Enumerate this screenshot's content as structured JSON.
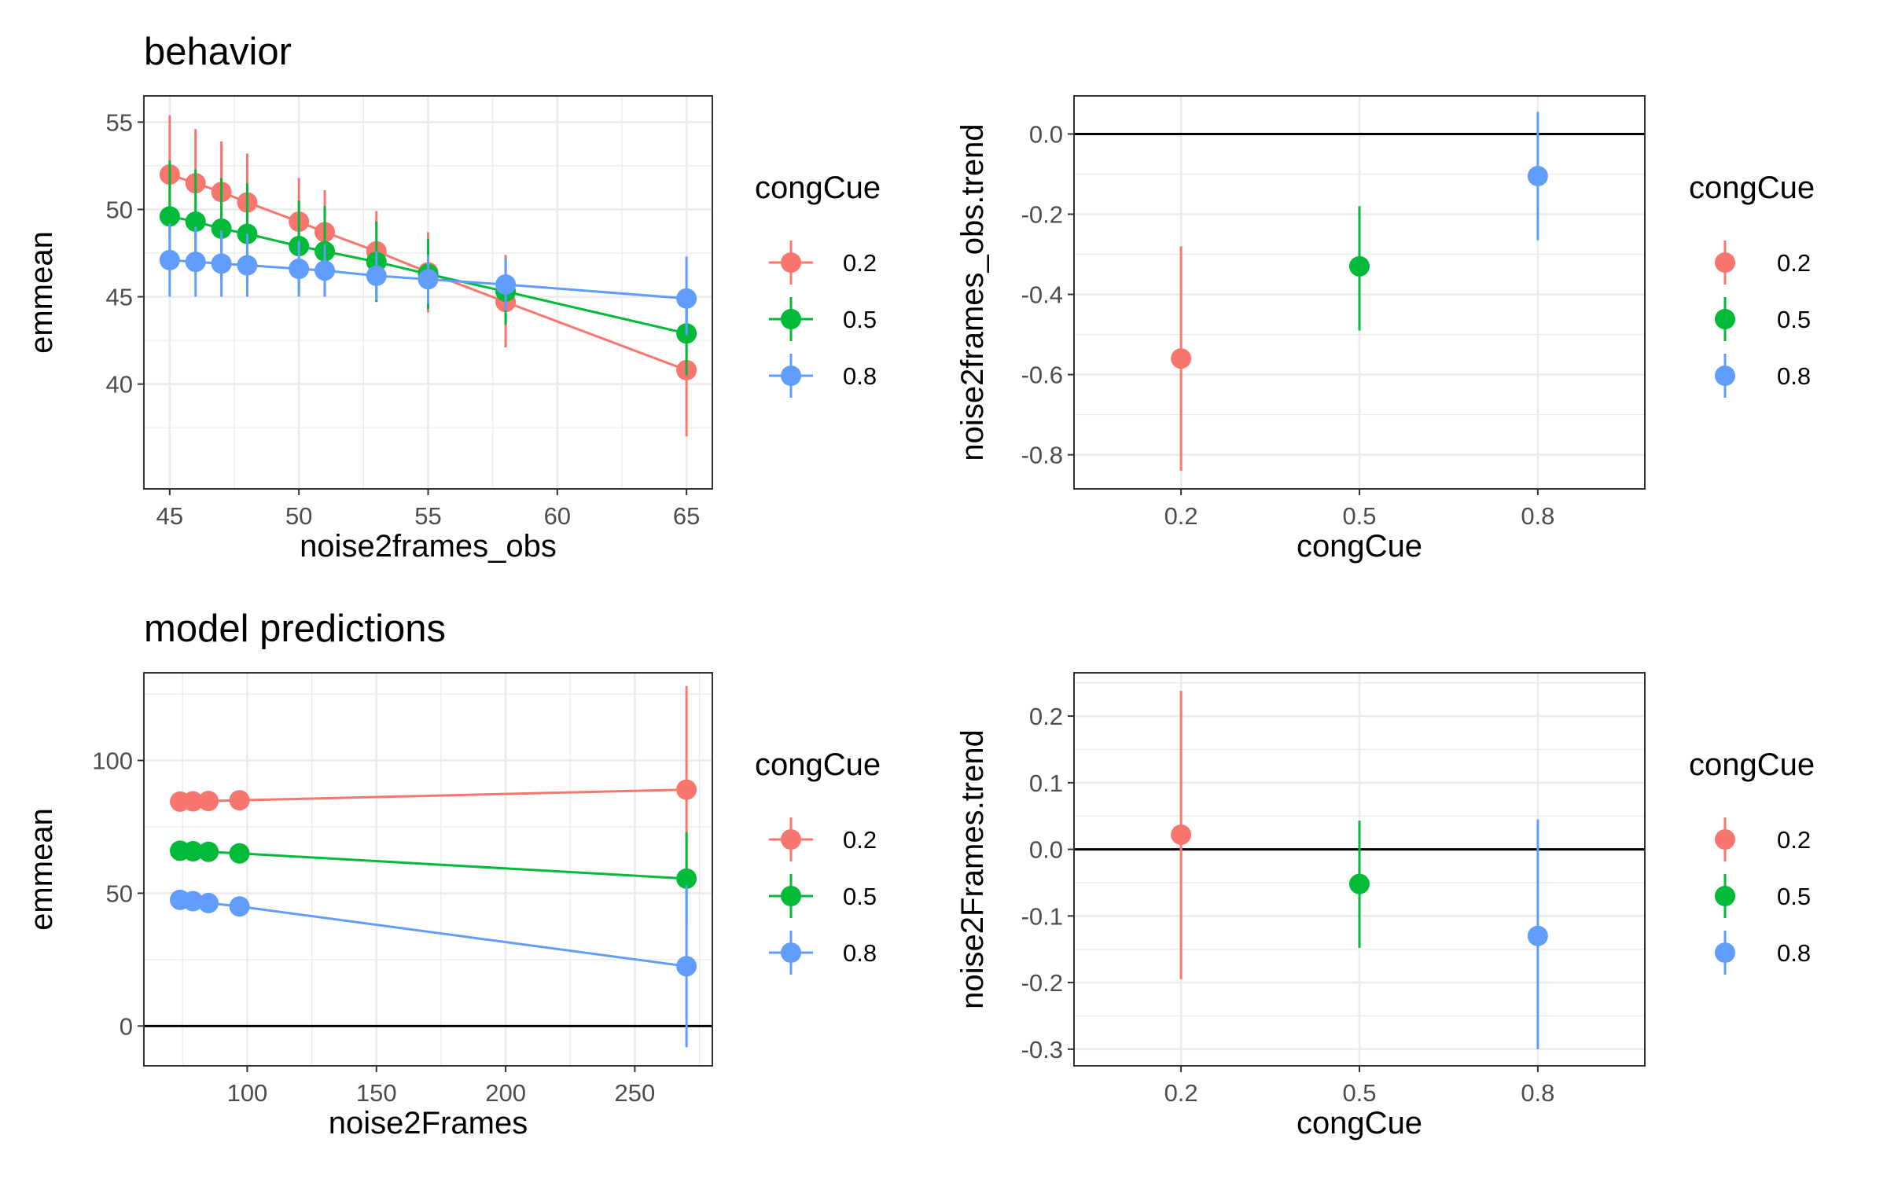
{
  "colors": {
    "0.2": "#F8766D",
    "0.5": "#00BA38",
    "0.8": "#619CFF",
    "axis": "#333333",
    "grid": "#EBEBEB",
    "ref": "#000000"
  },
  "chart_data": [
    {
      "type": "line",
      "title": "behavior",
      "xlabel": "noise2frames_obs",
      "ylabel": "emmean",
      "xlim": [
        44,
        66
      ],
      "ylim": [
        34,
        56.5
      ],
      "xticks": [
        45,
        50,
        55,
        60,
        65
      ],
      "yticks": [
        40,
        45,
        50,
        55
      ],
      "xtick_labels": [
        "45",
        "50",
        "55",
        "60",
        "65"
      ],
      "ytick_labels": [
        "40",
        "45",
        "50",
        "55"
      ],
      "x": [
        45,
        46,
        47,
        48,
        50,
        51,
        53,
        55,
        58,
        65
      ],
      "series": [
        {
          "name": "0.2",
          "y": [
            52.0,
            51.5,
            51.0,
            50.4,
            49.3,
            48.7,
            47.6,
            46.4,
            44.7,
            40.8
          ],
          "lo": [
            48.6,
            48.4,
            48.0,
            47.6,
            46.7,
            46.2,
            45.3,
            44.1,
            42.1,
            37.0
          ],
          "hi": [
            55.4,
            54.6,
            53.9,
            53.2,
            51.8,
            51.1,
            49.9,
            48.7,
            47.4,
            44.6
          ]
        },
        {
          "name": "0.5",
          "y": [
            49.6,
            49.3,
            48.9,
            48.6,
            47.9,
            47.6,
            47.0,
            46.3,
            45.3,
            42.9
          ],
          "lo": [
            46.4,
            46.3,
            46.0,
            45.7,
            45.3,
            45.0,
            44.7,
            44.3,
            43.4,
            40.5
          ],
          "hi": [
            52.8,
            52.3,
            51.8,
            51.5,
            50.5,
            50.2,
            49.3,
            48.3,
            47.2,
            45.3
          ]
        },
        {
          "name": "0.8",
          "y": [
            47.1,
            47.0,
            46.9,
            46.8,
            46.6,
            46.5,
            46.2,
            46.0,
            45.7,
            44.9
          ],
          "lo": [
            45.0,
            45.0,
            45.0,
            45.0,
            45.0,
            45.0,
            44.8,
            44.6,
            44.2,
            42.8
          ],
          "hi": [
            49.2,
            49.0,
            48.8,
            48.6,
            48.2,
            48.0,
            47.6,
            47.4,
            47.2,
            47.3
          ]
        }
      ],
      "legend": {
        "title": "congCue",
        "labels": [
          "0.2",
          "0.5",
          "0.8"
        ],
        "position": "right"
      }
    },
    {
      "type": "scatter",
      "title": "",
      "xlabel": "congCue",
      "ylabel": "noise2frames_obs.trend",
      "categories": [
        "0.2",
        "0.5",
        "0.8"
      ],
      "ylim": [
        -0.885,
        0.095
      ],
      "yticks": [
        0.0,
        -0.2,
        -0.4,
        -0.6,
        -0.8
      ],
      "ytick_labels": [
        "0.0",
        "-0.2",
        "-0.4",
        "-0.6",
        "-0.8"
      ],
      "reference_line": 0,
      "series": [
        {
          "name": "0.2",
          "y": -0.56,
          "lo": -0.84,
          "hi": -0.28
        },
        {
          "name": "0.5",
          "y": -0.33,
          "lo": -0.49,
          "hi": -0.18
        },
        {
          "name": "0.8",
          "y": -0.105,
          "lo": -0.265,
          "hi": 0.055
        }
      ],
      "legend": {
        "title": "congCue",
        "labels": [
          "0.2",
          "0.5",
          "0.8"
        ],
        "position": "right"
      }
    },
    {
      "type": "line",
      "title": "model predictions",
      "xlabel": "noise2Frames",
      "ylabel": "emmean",
      "xlim": [
        60,
        280
      ],
      "ylim": [
        -15,
        133
      ],
      "xticks": [
        100,
        150,
        200,
        250
      ],
      "yticks": [
        0,
        50,
        100
      ],
      "xtick_labels": [
        "100",
        "150",
        "200",
        "250"
      ],
      "ytick_labels": [
        "0",
        "50",
        "100"
      ],
      "reference_line": 0,
      "x": [
        74,
        79,
        85,
        97,
        270
      ],
      "series": [
        {
          "name": "0.2",
          "y": [
            84.5,
            84.6,
            84.7,
            85.0,
            89.0
          ],
          "lo": [
            82.0,
            82.2,
            82.5,
            83.5,
            50.0
          ],
          "hi": [
            87.0,
            87.0,
            87.0,
            86.5,
            128.0
          ]
        },
        {
          "name": "0.5",
          "y": [
            66.0,
            65.8,
            65.6,
            65.0,
            55.5
          ],
          "lo": [
            64.0,
            64.0,
            64.0,
            63.5,
            38.0
          ],
          "hi": [
            68.0,
            67.6,
            67.2,
            66.5,
            73.0
          ]
        },
        {
          "name": "0.8",
          "y": [
            47.5,
            47.0,
            46.3,
            45.0,
            22.5
          ],
          "lo": [
            45.5,
            45.0,
            44.5,
            43.5,
            -8.0
          ],
          "hi": [
            49.5,
            49.0,
            48.1,
            46.5,
            53.0
          ]
        }
      ],
      "legend": {
        "title": "congCue",
        "labels": [
          "0.2",
          "0.5",
          "0.8"
        ],
        "position": "right"
      }
    },
    {
      "type": "scatter",
      "title": "",
      "xlabel": "congCue",
      "ylabel": "noise2Frames.trend",
      "categories": [
        "0.2",
        "0.5",
        "0.8"
      ],
      "ylim": [
        -0.325,
        0.265
      ],
      "yticks": [
        0.2,
        0.1,
        0.0,
        -0.1,
        -0.2,
        -0.3
      ],
      "ytick_labels": [
        "0.2",
        "0.1",
        "0.0",
        "-0.1",
        "-0.2",
        "-0.3"
      ],
      "reference_line": 0,
      "series": [
        {
          "name": "0.2",
          "y": 0.022,
          "lo": -0.195,
          "hi": 0.238
        },
        {
          "name": "0.5",
          "y": -0.052,
          "lo": -0.148,
          "hi": 0.043
        },
        {
          "name": "0.8",
          "y": -0.13,
          "lo": -0.3,
          "hi": 0.045
        }
      ],
      "legend": {
        "title": "congCue",
        "labels": [
          "0.2",
          "0.5",
          "0.8"
        ],
        "position": "right"
      }
    }
  ]
}
